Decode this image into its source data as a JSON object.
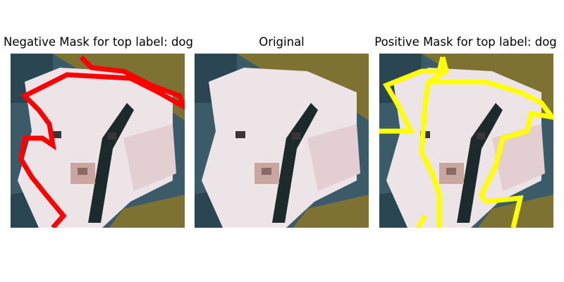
{
  "panels": [
    {
      "id": "negative",
      "title": "Negative Mask for top label: dog",
      "overlay": "negative",
      "mask_color": "#ff0000"
    },
    {
      "id": "original",
      "title": "Original",
      "overlay": "none"
    },
    {
      "id": "positive",
      "title": "Positive Mask for top label: dog",
      "overlay": "positive",
      "mask_color": "#ffff00"
    }
  ],
  "image": {
    "subject": "white puppy on dark blue background with olive ground",
    "colors": {
      "background_dark": "#2b4653",
      "background_mid": "#3c5b68",
      "background_light": "#5d7a84",
      "ground": "#7d7232",
      "ground_light": "#9a8d45",
      "fur_white": "#ece4e6",
      "fur_shadow": "#cfc3c6",
      "fur_pink": "#e3cfd2",
      "harness": "#1c2a2c",
      "eye": "#3a3638",
      "nose": "#8b6a64",
      "muzzle": "#c9a6a0"
    }
  }
}
